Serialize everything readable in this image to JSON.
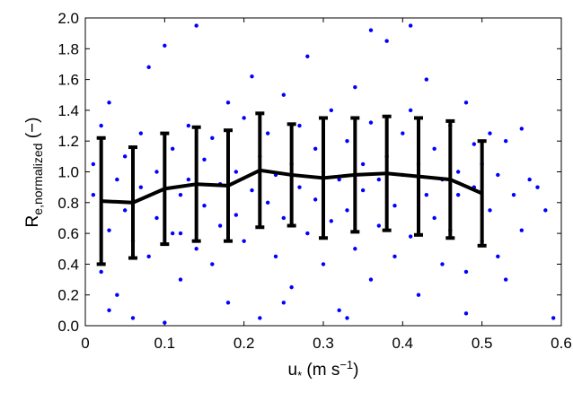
{
  "chart_data": {
    "type": "scatter",
    "xlabel": {
      "main": "u",
      "sub": "*",
      "rest": " (m s",
      "sup": "−1",
      "end": ")"
    },
    "ylabel": {
      "main": "R",
      "sub": "e,normalized",
      "rest": " (−)"
    },
    "xlim": [
      0,
      0.6
    ],
    "ylim": [
      0,
      2.0
    ],
    "xticks": [
      0,
      0.1,
      0.2,
      0.3,
      0.4,
      0.5,
      0.6
    ],
    "yticks": [
      {
        "value": 0,
        "label": "0.0"
      },
      0.2,
      0.4,
      0.6,
      0.8,
      {
        "value": 1,
        "label": "1.0"
      },
      1.2,
      1.4,
      1.6,
      1.8,
      {
        "value": 2,
        "label": "2.0"
      }
    ],
    "points": {
      "color": "#0000ff",
      "x": [
        0.01,
        0.01,
        0.02,
        0.02,
        0.03,
        0.03,
        0.04,
        0.04,
        0.05,
        0.05,
        0.06,
        0.06,
        0.07,
        0.07,
        0.08,
        0.08,
        0.09,
        0.09,
        0.1,
        0.1,
        0.11,
        0.11,
        0.12,
        0.12,
        0.13,
        0.13,
        0.14,
        0.14,
        0.15,
        0.15,
        0.16,
        0.16,
        0.17,
        0.17,
        0.18,
        0.18,
        0.19,
        0.19,
        0.2,
        0.2,
        0.21,
        0.21,
        0.22,
        0.22,
        0.23,
        0.23,
        0.24,
        0.24,
        0.25,
        0.25,
        0.26,
        0.26,
        0.27,
        0.27,
        0.28,
        0.28,
        0.29,
        0.29,
        0.3,
        0.3,
        0.31,
        0.31,
        0.32,
        0.32,
        0.33,
        0.33,
        0.34,
        0.34,
        0.35,
        0.35,
        0.36,
        0.36,
        0.37,
        0.37,
        0.38,
        0.38,
        0.39,
        0.39,
        0.4,
        0.4,
        0.41,
        0.41,
        0.42,
        0.42,
        0.43,
        0.43,
        0.44,
        0.44,
        0.45,
        0.45,
        0.46,
        0.46,
        0.47,
        0.47,
        0.48,
        0.48,
        0.49,
        0.49,
        0.5,
        0.5,
        0.51,
        0.51,
        0.52,
        0.52,
        0.53,
        0.53,
        0.54,
        0.55,
        0.55,
        0.56,
        0.57,
        0.58,
        0.59,
        0.41,
        0.36,
        0.03,
        0.12,
        0.25,
        0.33,
        0.48
      ],
      "y": [
        0.85,
        1.05,
        0.35,
        1.3,
        0.62,
        1.45,
        0.2,
        0.95,
        0.75,
        1.1,
        0.05,
        0.55,
        0.9,
        1.25,
        0.45,
        1.68,
        0.7,
        1.0,
        0.02,
        1.82,
        0.6,
        1.15,
        0.85,
        0.3,
        1.3,
        0.95,
        0.5,
        1.95,
        0.78,
        1.08,
        0.4,
        1.22,
        0.92,
        0.65,
        1.45,
        0.15,
        1.0,
        0.72,
        0.55,
        1.35,
        0.88,
        1.62,
        0.05,
        1.1,
        0.8,
        1.25,
        0.45,
        0.98,
        1.5,
        0.7,
        1.05,
        0.25,
        0.9,
        1.3,
        0.6,
        1.75,
        1.15,
        0.82,
        0.4,
        1.0,
        1.4,
        0.68,
        0.95,
        0.1,
        1.2,
        0.75,
        1.55,
        0.5,
        1.05,
        0.88,
        0.3,
        1.32,
        0.95,
        0.65,
        1.85,
        1.1,
        0.78,
        0.45,
        1.25,
        0.98,
        0.58,
        1.4,
        1.05,
        0.2,
        0.85,
        1.6,
        0.7,
        1.15,
        0.95,
        0.4,
        1.3,
        0.62,
        1.0,
        0.85,
        1.45,
        0.35,
        0.9,
        1.18,
        0.55,
        1.05,
        0.75,
        1.25,
        0.45,
        0.98,
        1.2,
        0.3,
        0.85,
        1.28,
        0.62,
        0.95,
        0.9,
        0.75,
        0.05,
        1.95,
        1.92,
        0.1,
        0.6,
        0.15,
        0.05,
        0.08
      ]
    },
    "mean": {
      "color": "#000000",
      "x": [
        0.02,
        0.06,
        0.1,
        0.14,
        0.18,
        0.22,
        0.26,
        0.3,
        0.34,
        0.38,
        0.42,
        0.46,
        0.5
      ],
      "values": [
        0.81,
        0.8,
        0.89,
        0.92,
        0.91,
        1.01,
        0.98,
        0.96,
        0.98,
        0.99,
        0.97,
        0.95,
        0.86
      ],
      "errors": [
        0.41,
        0.36,
        0.36,
        0.37,
        0.36,
        0.37,
        0.33,
        0.39,
        0.37,
        0.37,
        0.38,
        0.38,
        0.34
      ]
    }
  }
}
